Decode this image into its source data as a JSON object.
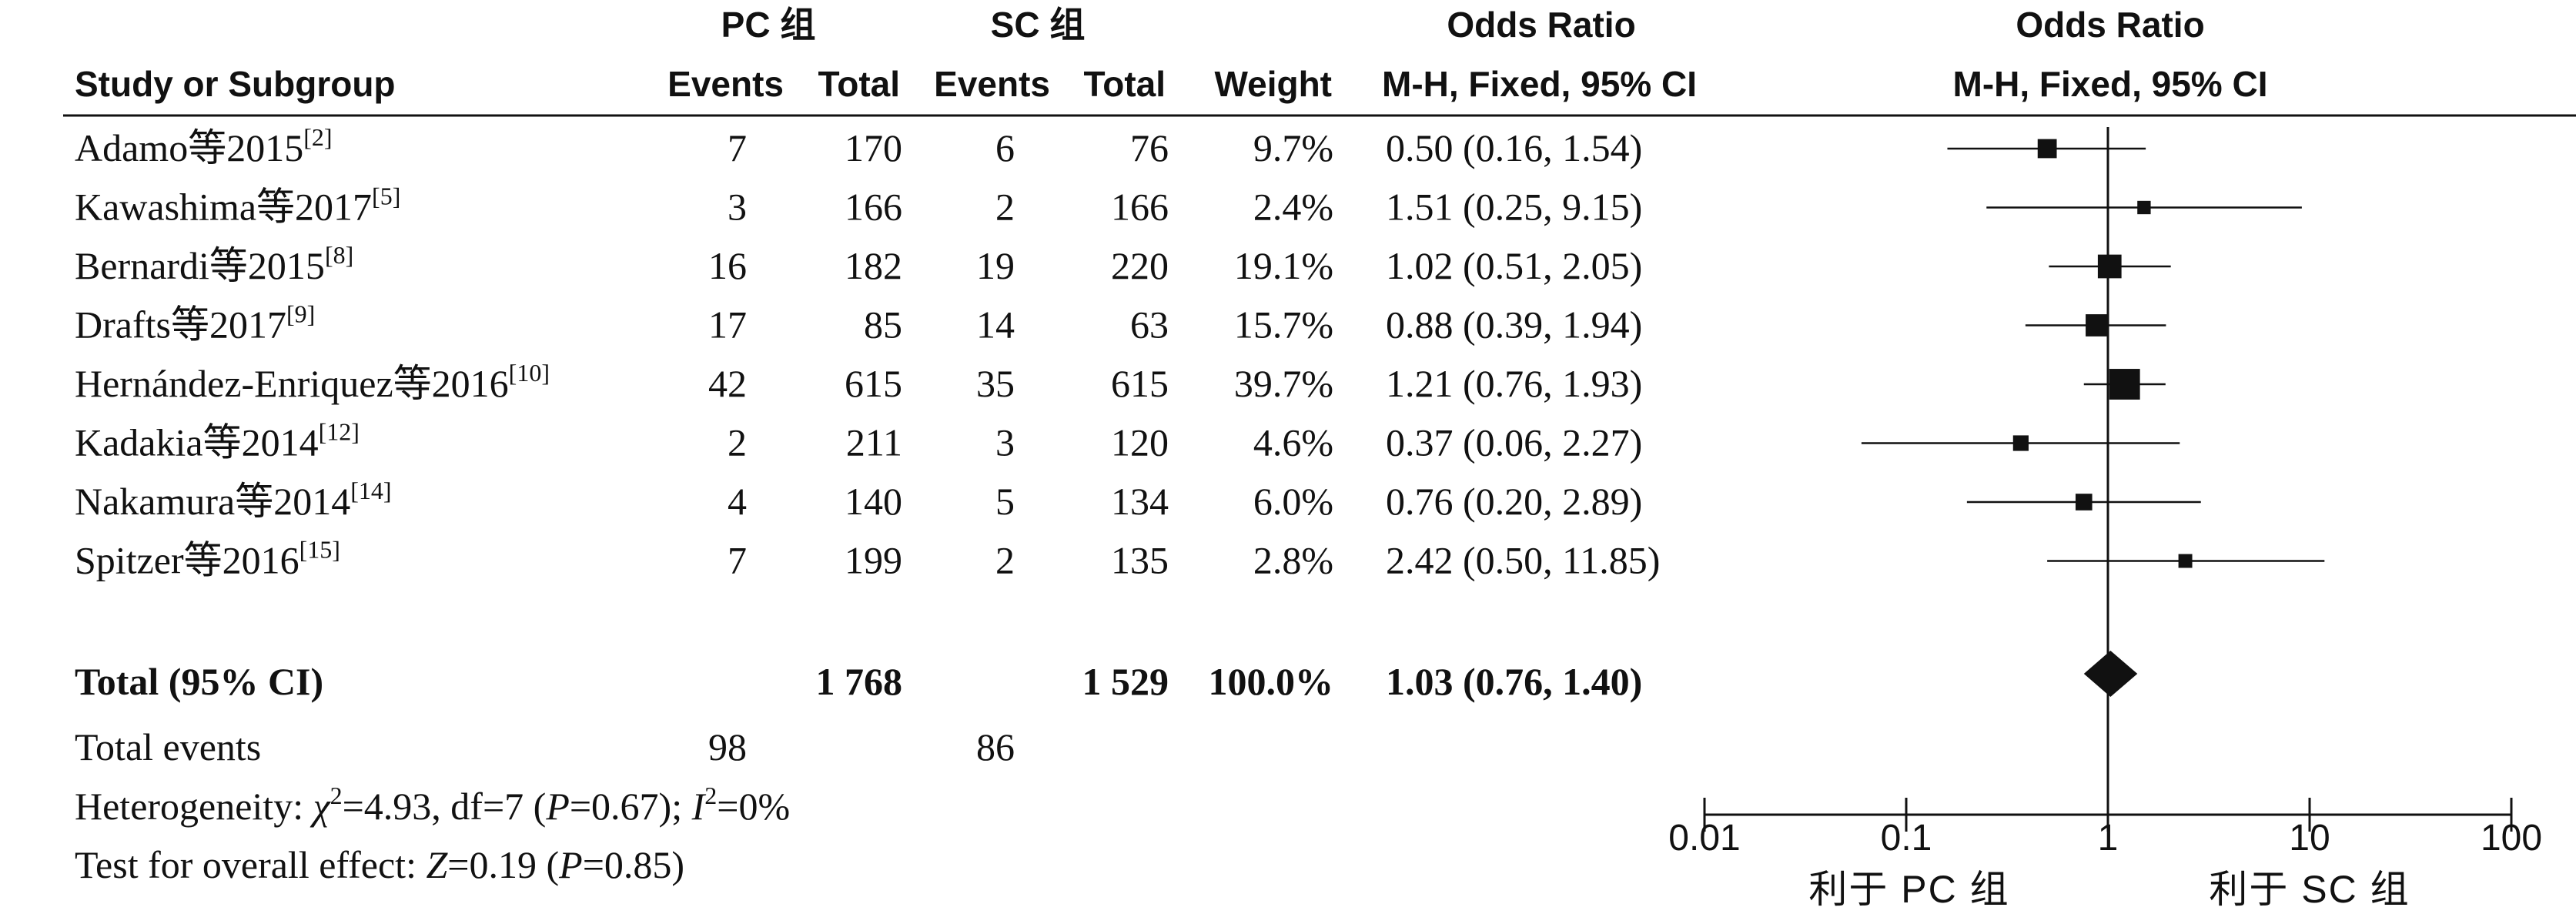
{
  "headers": {
    "group1": "PC 组",
    "group2": "SC 组",
    "or_title": "Odds Ratio",
    "study": "Study or Subgroup",
    "events1": "Events",
    "total1": "Total",
    "events2": "Events",
    "total2": "Total",
    "weight": "Weight",
    "or_method": "M-H, Fixed, 95% CI",
    "plot_title": "Odds Ratio",
    "plot_method": "M-H, Fixed, 95% CI"
  },
  "studies": [
    {
      "name": "Adamo等2015",
      "ref": "[2]",
      "e1": "7",
      "t1": "170",
      "e2": "6",
      "t2": "76",
      "weight": "9.7%",
      "ci_text": "0.50 (0.16, 1.54)"
    },
    {
      "name": "Kawashima等2017",
      "ref": "[5]",
      "e1": "3",
      "t1": "166",
      "e2": "2",
      "t2": "166",
      "weight": "2.4%",
      "ci_text": "1.51 (0.25, 9.15)"
    },
    {
      "name": "Bernardi等2015",
      "ref": "[8]",
      "e1": "16",
      "t1": "182",
      "e2": "19",
      "t2": "220",
      "weight": "19.1%",
      "ci_text": "1.02 (0.51, 2.05)"
    },
    {
      "name": "Drafts等2017",
      "ref": "[9]",
      "e1": "17",
      "t1": "85",
      "e2": "14",
      "t2": "63",
      "weight": "15.7%",
      "ci_text": "0.88 (0.39, 1.94)"
    },
    {
      "name": "Hernández-Enriquez等2016",
      "ref": "[10]",
      "e1": "42",
      "t1": "615",
      "e2": "35",
      "t2": "615",
      "weight": "39.7%",
      "ci_text": "1.21 (0.76, 1.93)"
    },
    {
      "name": "Kadakia等2014",
      "ref": "[12]",
      "e1": "2",
      "t1": "211",
      "e2": "3",
      "t2": "120",
      "weight": "4.6%",
      "ci_text": "0.37 (0.06, 2.27)"
    },
    {
      "name": "Nakamura等2014",
      "ref": "[14]",
      "e1": "4",
      "t1": "140",
      "e2": "5",
      "t2": "134",
      "weight": "6.0%",
      "ci_text": "0.76 (0.20, 2.89)"
    },
    {
      "name": "Spitzer等2016",
      "ref": "[15]",
      "e1": "7",
      "t1": "199",
      "e2": "2",
      "t2": "135",
      "weight": "2.8%",
      "ci_text": "2.42 (0.50, 11.85)"
    }
  ],
  "total": {
    "label": "Total (95% CI)",
    "t1": "1 768",
    "t2": "1 529",
    "weight": "100.0%",
    "ci_text": "1.03 (0.76, 1.40)"
  },
  "total_events": {
    "label": "Total events",
    "e1": "98",
    "e2": "86"
  },
  "heterogeneity": {
    "prefix": "Heterogeneity: ",
    "chi_symbol": "χ",
    "chi_exp": "2",
    "chi_rest": "=4.93, df=7 (",
    "p_symbol": "P",
    "p_rest": "=0.67); ",
    "i_symbol": "I",
    "i_exp": "2",
    "i_rest": "=0%"
  },
  "overall": {
    "prefix": "Test for overall effect: ",
    "z_symbol": "Z",
    "z_rest": "=0.19 (",
    "p_symbol": "P",
    "p_rest": "=0.85)"
  },
  "axis": {
    "ticks": [
      0.01,
      0.1,
      1,
      10,
      100
    ],
    "tick_labels": [
      "0.01",
      "0.1",
      "1",
      "10",
      "100"
    ],
    "favours_left": "利于 PC 组",
    "favours_right": "利于 SC 组",
    "scale": "log"
  },
  "chart_data": {
    "type": "forest",
    "scale": "log",
    "xlim": [
      0.01,
      100
    ],
    "reference_line": 1,
    "categories": [
      "Adamo等2015",
      "Kawashima等2017",
      "Bernardi等2015",
      "Drafts等2017",
      "Hernández-Enriquez等2016",
      "Kadakia等2014",
      "Nakamura等2014",
      "Spitzer等2016"
    ],
    "or": [
      0.5,
      1.51,
      1.02,
      0.88,
      1.21,
      0.37,
      0.76,
      2.42
    ],
    "ci_low": [
      0.16,
      0.25,
      0.51,
      0.39,
      0.76,
      0.06,
      0.2,
      0.5
    ],
    "ci_high": [
      1.54,
      9.15,
      2.05,
      1.94,
      1.93,
      2.27,
      2.89,
      11.85
    ],
    "weights": [
      9.7,
      2.4,
      19.1,
      15.7,
      39.7,
      4.6,
      6.0,
      2.8
    ],
    "pooled": {
      "or": 1.03,
      "ci_low": 0.76,
      "ci_high": 1.4
    }
  }
}
